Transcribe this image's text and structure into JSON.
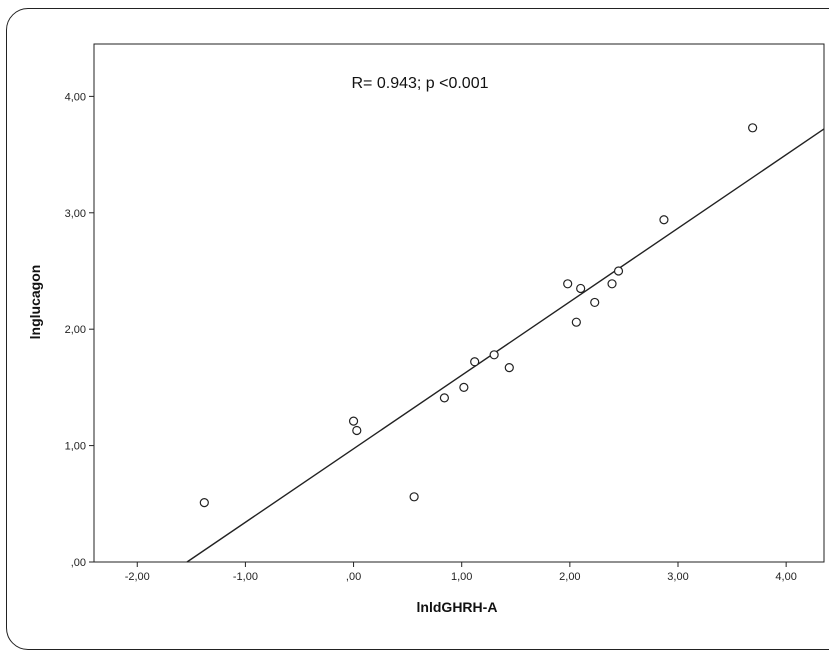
{
  "chart_data": {
    "type": "scatter",
    "title": "",
    "xlabel": "lnldGHRH-A",
    "ylabel": "lnglucagon",
    "annotation": "R= 0.943; p <0.001",
    "xlim": [
      -2.4,
      4.35
    ],
    "ylim": [
      0,
      4.45
    ],
    "x_ticks": [
      "-2,00",
      "-1,00",
      ",00",
      "1,00",
      "2,00",
      "3,00",
      "4,00"
    ],
    "y_ticks": [
      ",00",
      "1,00",
      "2,00",
      "3,00",
      "4,00"
    ],
    "grid": false,
    "series": [
      {
        "points": [
          {
            "x": -1.38,
            "y": 0.51
          },
          {
            "x": 0.0,
            "y": 1.21
          },
          {
            "x": 0.03,
            "y": 1.13
          },
          {
            "x": 0.56,
            "y": 0.56
          },
          {
            "x": 0.84,
            "y": 1.41
          },
          {
            "x": 1.02,
            "y": 1.5
          },
          {
            "x": 1.12,
            "y": 1.72
          },
          {
            "x": 1.3,
            "y": 1.78
          },
          {
            "x": 1.44,
            "y": 1.67
          },
          {
            "x": 1.98,
            "y": 2.39
          },
          {
            "x": 2.06,
            "y": 2.06
          },
          {
            "x": 2.1,
            "y": 2.35
          },
          {
            "x": 2.23,
            "y": 2.23
          },
          {
            "x": 2.39,
            "y": 2.39
          },
          {
            "x": 2.45,
            "y": 2.5
          },
          {
            "x": 2.87,
            "y": 2.94
          },
          {
            "x": 3.69,
            "y": 3.73
          }
        ]
      }
    ],
    "fit_line": {
      "x": [
        -1.54,
        4.35
      ],
      "y": [
        0.0,
        3.72
      ]
    }
  }
}
